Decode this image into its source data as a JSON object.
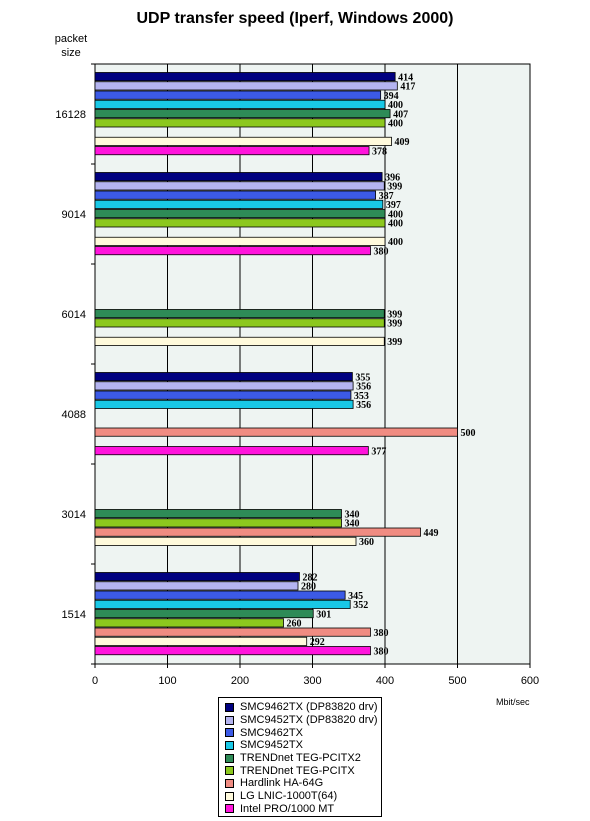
{
  "chart_data": {
    "type": "bar",
    "orientation": "horizontal",
    "title": "UDP transfer speed (Iperf, Windows 2000)",
    "ylabel": "packet size",
    "xlabel": "Mbit/sec",
    "xlim": [
      0,
      600
    ],
    "x_ticks": [
      "0",
      "100",
      "200",
      "300",
      "400",
      "500",
      "600"
    ],
    "grid": true,
    "legend_position": "bottom",
    "categories": [
      "16128",
      "9014",
      "6014",
      "4088",
      "3014",
      "1514"
    ],
    "series": [
      {
        "name": "SMC9462TX (DP83820 drv)",
        "color": "#000080",
        "values": [
          414,
          396,
          null,
          355,
          null,
          282
        ]
      },
      {
        "name": "SMC9452TX (DP83820 drv)",
        "color": "#b4b4f0",
        "values": [
          417,
          399,
          null,
          356,
          null,
          280
        ]
      },
      {
        "name": "SMC9462TX",
        "color": "#3c5ae6",
        "values": [
          394,
          387,
          null,
          353,
          null,
          345
        ]
      },
      {
        "name": "SMC9452TX",
        "color": "#19c8e6",
        "values": [
          400,
          397,
          null,
          356,
          null,
          352
        ]
      },
      {
        "name": "TRENDnet TEG-PCITX2",
        "color": "#2e8b57",
        "values": [
          407,
          400,
          399,
          null,
          340,
          301
        ]
      },
      {
        "name": "TRENDnet TEG-PCITX",
        "color": "#8cc81e",
        "values": [
          400,
          400,
          399,
          null,
          340,
          260
        ]
      },
      {
        "name": "Hardlink HA-64G",
        "color": "#f08c82",
        "values": [
          null,
          null,
          null,
          500,
          449,
          380
        ]
      },
      {
        "name": "LG LNIC-1000T(64)",
        "color": "#fffadc",
        "values": [
          409,
          400,
          399,
          null,
          360,
          292
        ]
      },
      {
        "name": "Intel PRO/1000 MT",
        "color": "#ff14dc",
        "values": [
          378,
          380,
          null,
          377,
          null,
          380
        ]
      }
    ],
    "colors": {
      "plot_background": "#eef4f2",
      "gridline": "#000000"
    }
  }
}
